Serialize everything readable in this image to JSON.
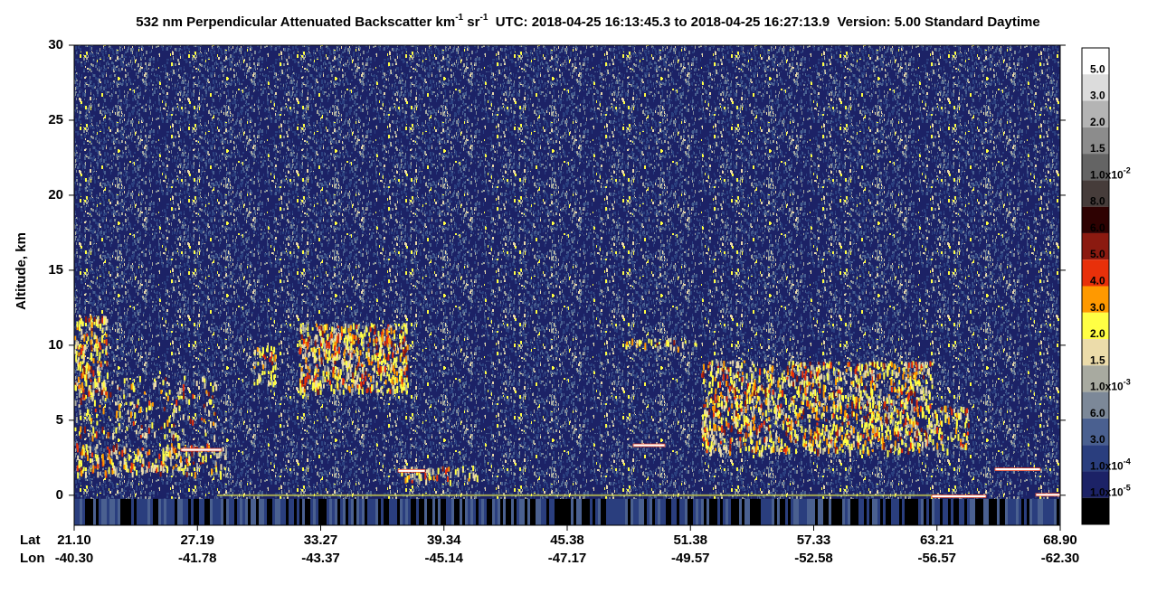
{
  "chart_data": {
    "type": "heatmap",
    "title": {
      "part1": "532 nm Perpendicular Attenuated Backscatter km",
      "sup1": "-1",
      "part2": " sr",
      "sup2": "-1",
      "part3": "  UTC: 2018-04-25 16:13:45.3 to 2018-04-25 16:27:13.9  Version: 5.00 Standard Daytime"
    },
    "y_label": "Altitude, km",
    "ylim": [
      -2,
      30
    ],
    "yticks": [
      0,
      5,
      10,
      15,
      20,
      25,
      30
    ],
    "x_rows": {
      "lat_label": "Lat",
      "lon_label": "Lon",
      "lat": [
        "21.10",
        "27.19",
        "33.27",
        "39.34",
        "45.38",
        "51.38",
        "57.33",
        "63.21",
        "68.90"
      ],
      "lon": [
        "-40.30",
        "-41.78",
        "-43.37",
        "-45.14",
        "-47.17",
        "-49.57",
        "-52.58",
        "-56.57",
        "-62.30"
      ]
    },
    "colorbar": {
      "colors": [
        "#ffffff",
        "#dcdcdc",
        "#b4b4b4",
        "#8c8c8c",
        "#646464",
        "#463c3a",
        "#2e0202",
        "#8b1a10",
        "#e8300a",
        "#ff9900",
        "#ffff44",
        "#ecdcaa",
        "#a8aaa0",
        "#7c8898",
        "#4a6090",
        "#2a3e7e",
        "#1c2266",
        "#000000"
      ],
      "labels": [
        {
          "text": "5.0"
        },
        {
          "text": "3.0"
        },
        {
          "text": "2.0"
        },
        {
          "text": "1.5"
        },
        {
          "text": "1.0x10",
          "sup": "-2"
        },
        {
          "text": "8.0"
        },
        {
          "text": "6.0"
        },
        {
          "text": "5.0"
        },
        {
          "text": "4.0"
        },
        {
          "text": "3.0"
        },
        {
          "text": "2.0"
        },
        {
          "text": "1.5"
        },
        {
          "text": "1.0x10",
          "sup": "-3"
        },
        {
          "text": "6.0"
        },
        {
          "text": "3.0"
        },
        {
          "text": "1.0x10",
          "sup": "-4"
        },
        {
          "text": "1.0x10",
          "sup": "-5"
        }
      ]
    }
  }
}
